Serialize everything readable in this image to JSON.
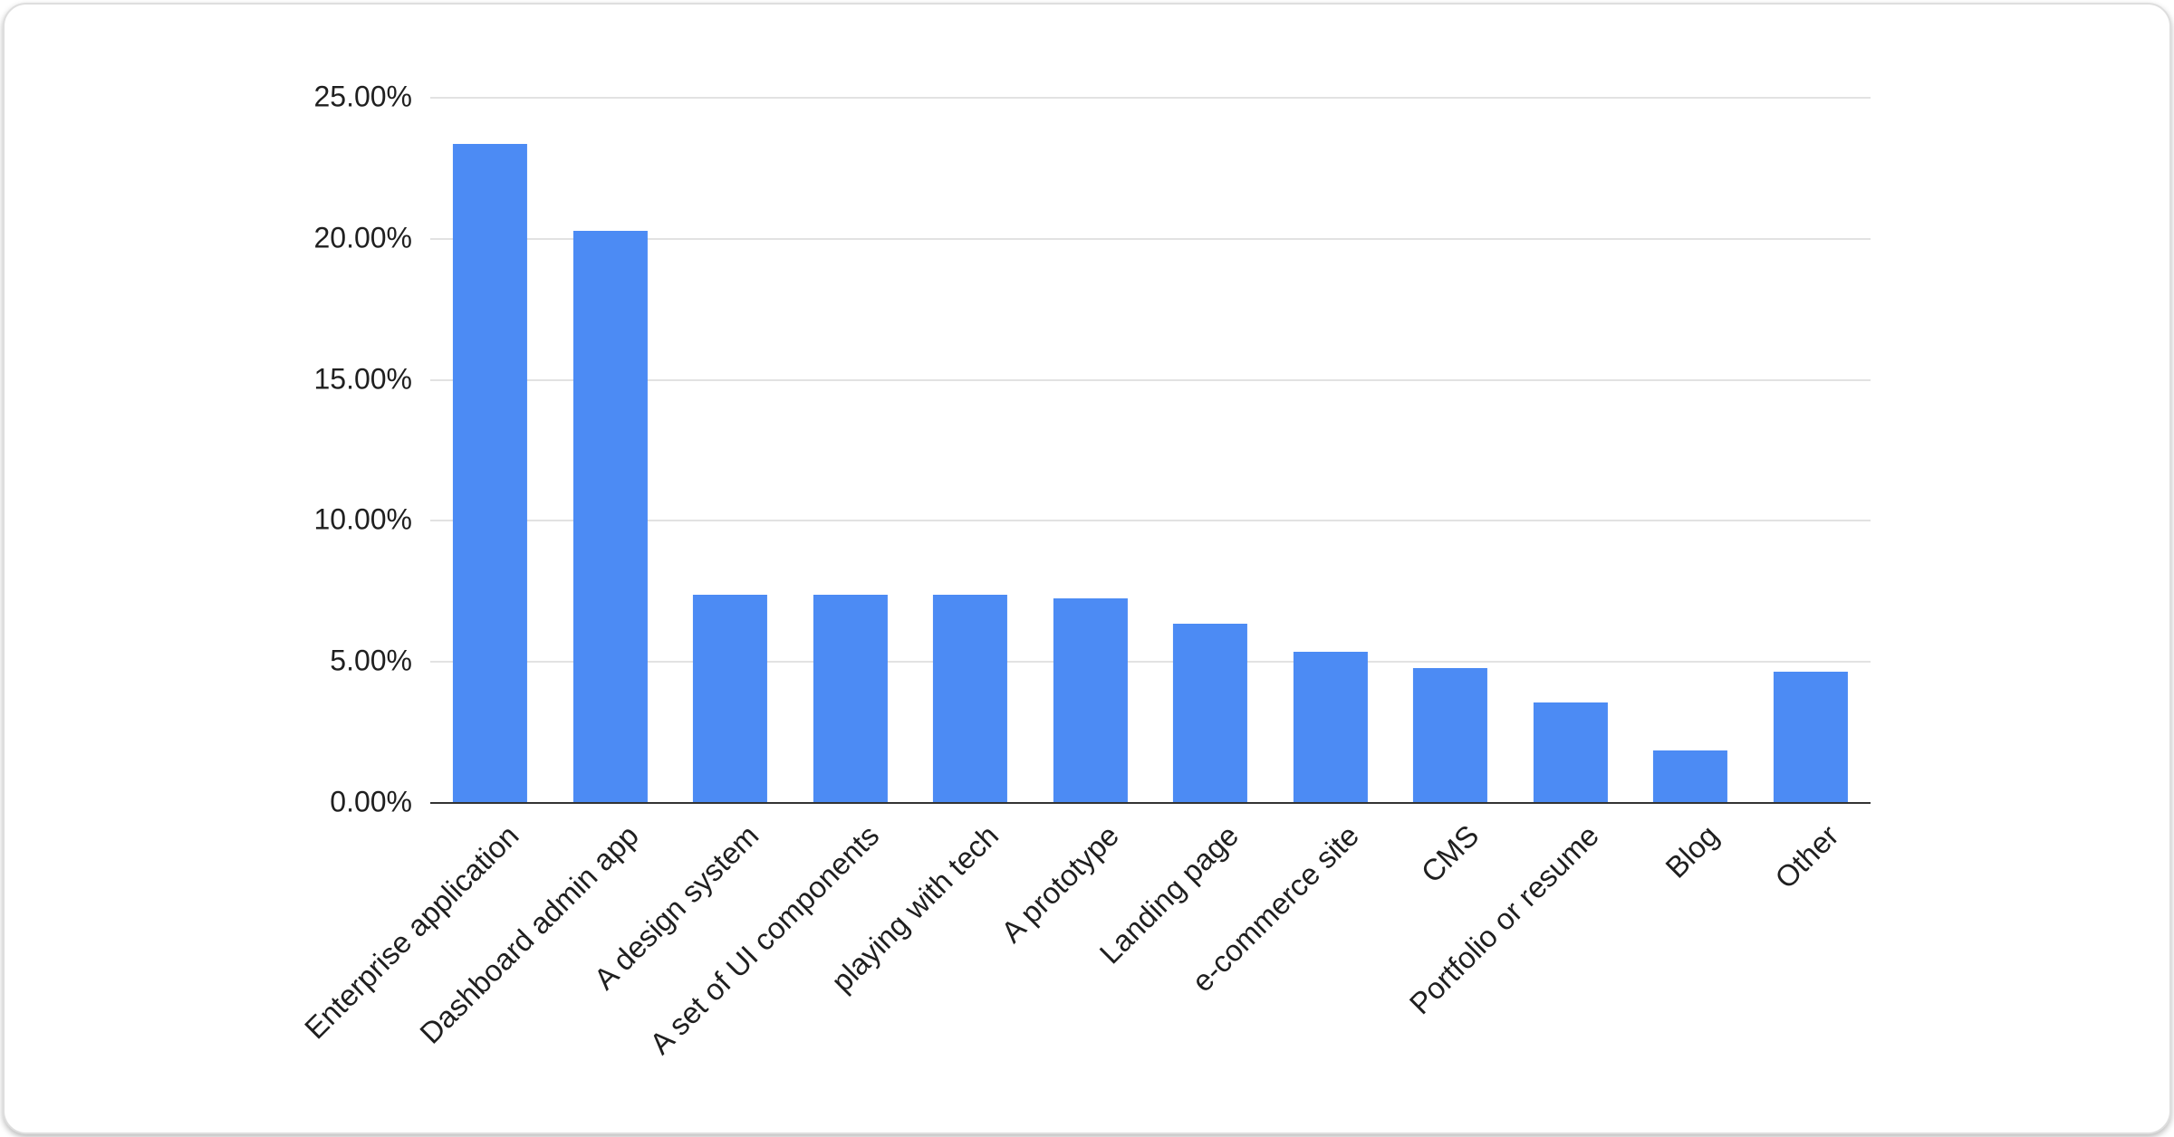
{
  "chart_data": {
    "type": "bar",
    "title": "",
    "xlabel": "",
    "ylabel": "",
    "categories": [
      "Enterprise application",
      "Dashboard admin app",
      "A design system",
      "A set of UI components",
      "playing with tech",
      "A prototype",
      "Landing page",
      "e-commerce site",
      "CMS",
      "Portfolio or resume",
      "Blog",
      "Other"
    ],
    "values": [
      23.4,
      20.3,
      7.4,
      7.4,
      7.4,
      7.3,
      6.4,
      5.4,
      4.8,
      3.6,
      1.9,
      4.7
    ],
    "value_unit": "%",
    "ylim": [
      0,
      25
    ],
    "yticks": [
      0,
      5,
      10,
      15,
      20,
      25
    ],
    "ytick_labels": [
      "0.00%",
      "5.00%",
      "10.00%",
      "15.00%",
      "20.00%",
      "25.00%"
    ],
    "grid": true,
    "legend_position": "none",
    "bar_color": "#4c8bf4",
    "gridline_color": "#e2e2e2",
    "axis_color": "#333333",
    "label_color": "#1f1f1f"
  }
}
